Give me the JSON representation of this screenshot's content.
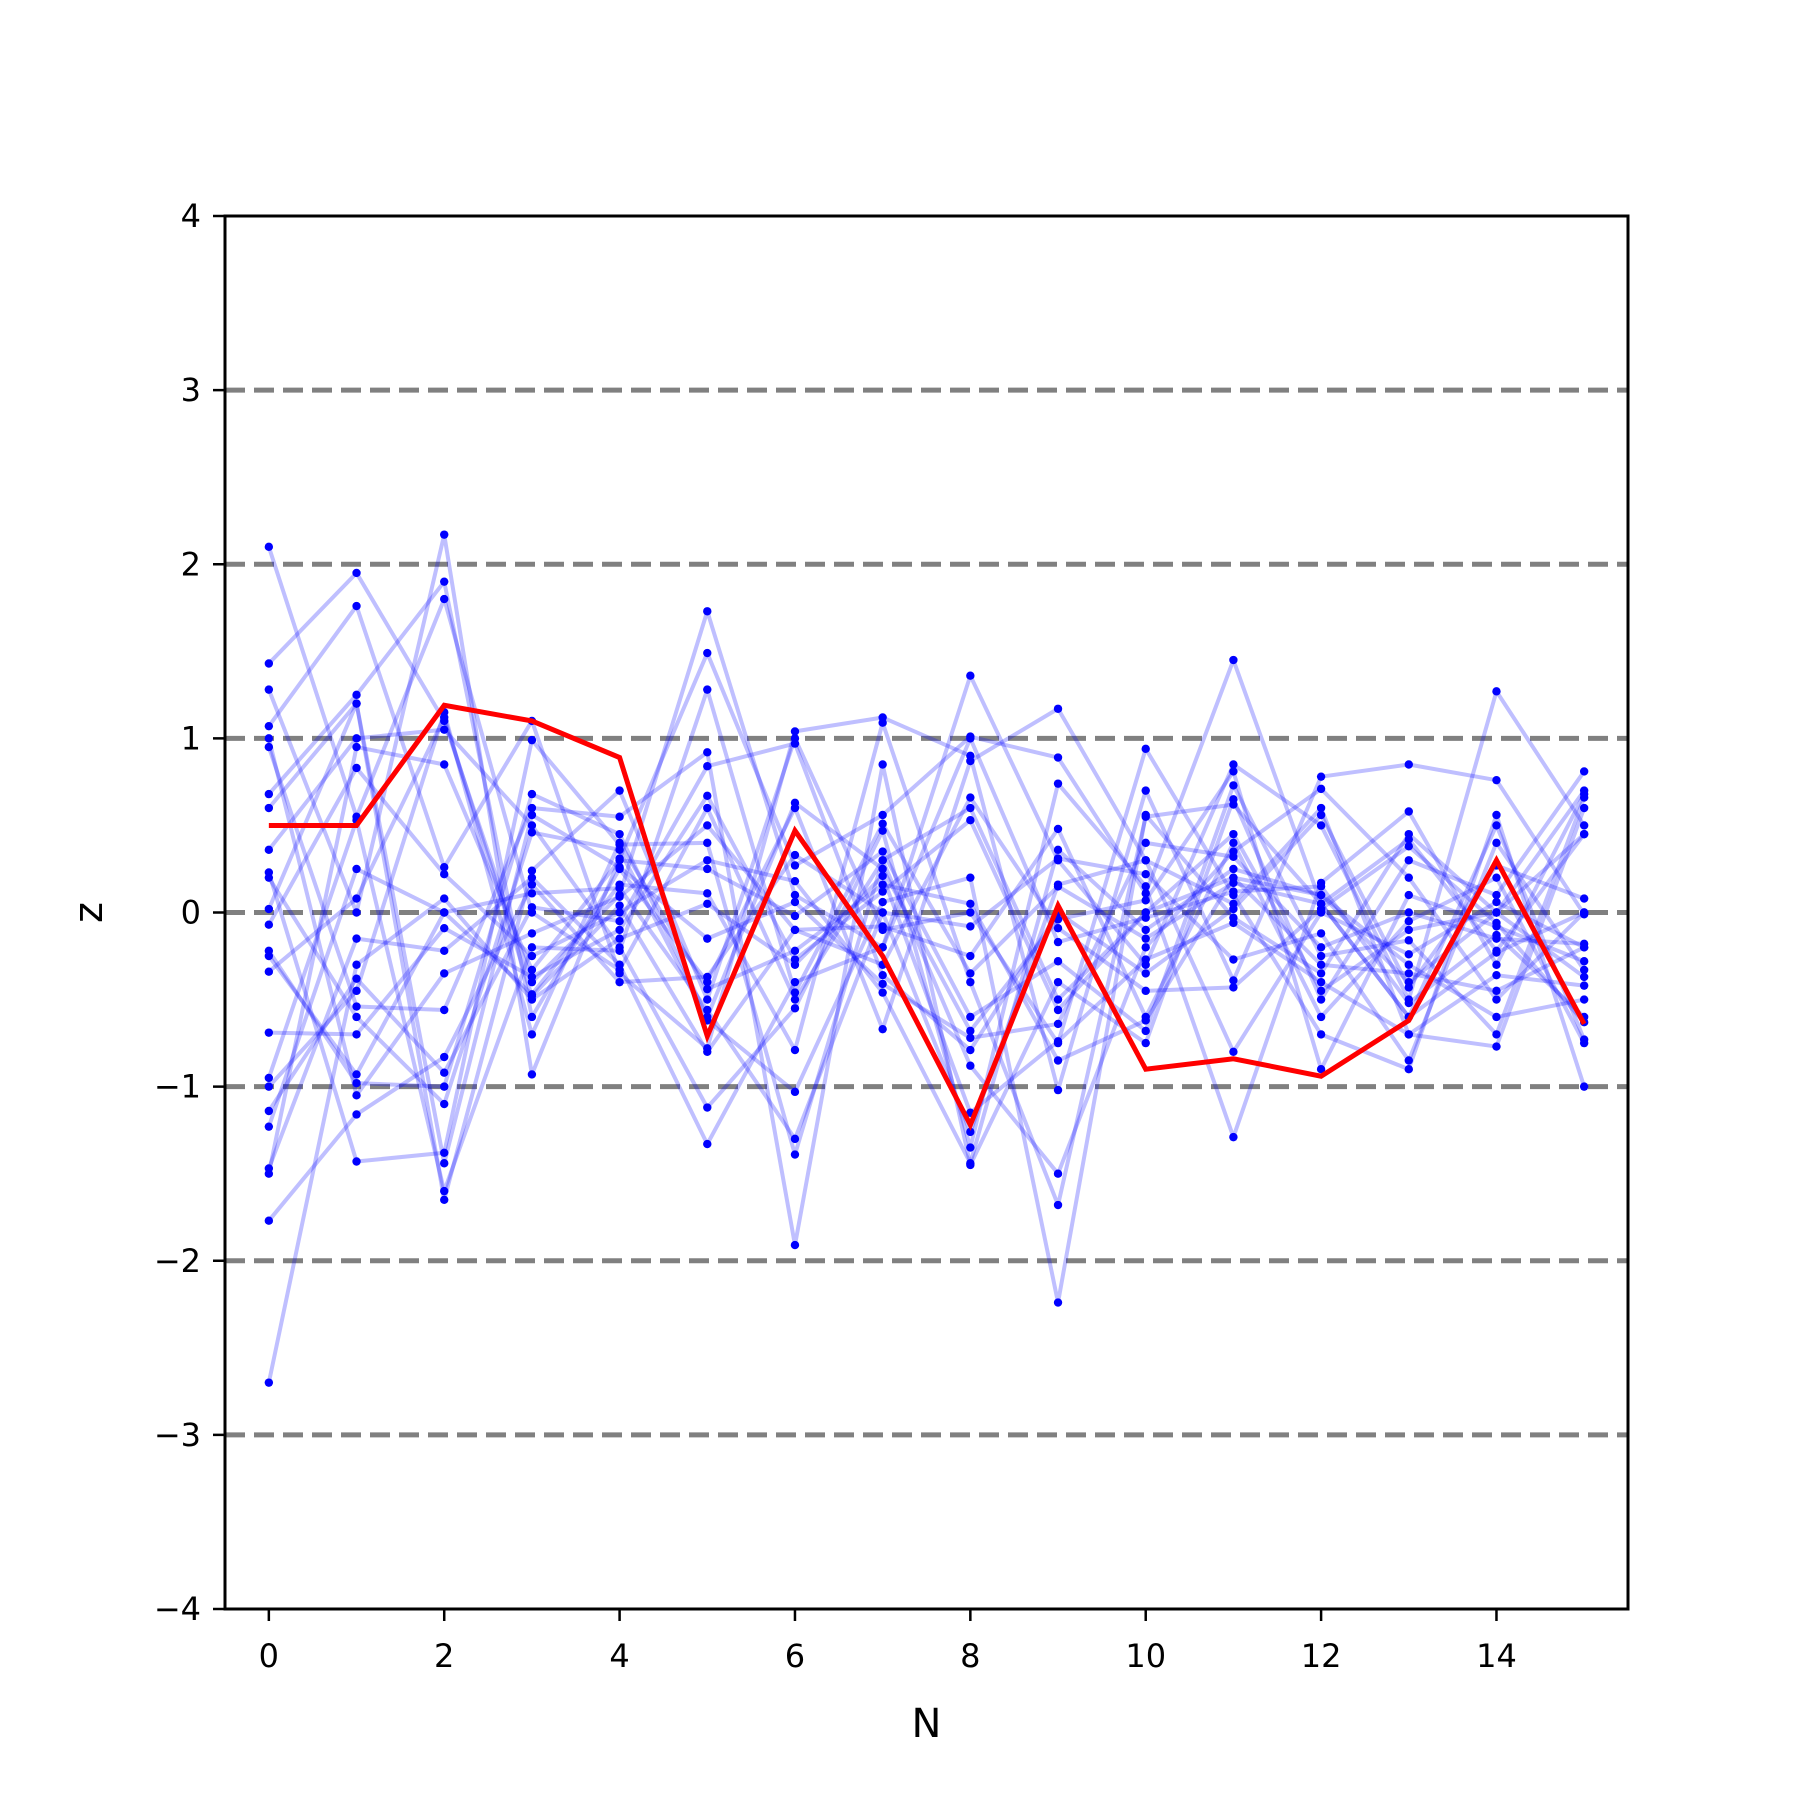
{
  "chart_data": {
    "type": "line",
    "title": "",
    "xlabel": "N",
    "ylabel": "z",
    "xlim": [
      -0.5,
      15.5
    ],
    "ylim": [
      -4,
      4
    ],
    "x": [
      0,
      1,
      2,
      3,
      4,
      5,
      6,
      7,
      8,
      9,
      10,
      11,
      12,
      13,
      14,
      15
    ],
    "x_ticks": [
      0,
      2,
      4,
      6,
      8,
      10,
      12,
      14
    ],
    "x_tick_labels": [
      "0",
      "2",
      "4",
      "6",
      "8",
      "10",
      "12",
      "14"
    ],
    "y_ticks": [
      -4,
      -3,
      -2,
      -1,
      0,
      1,
      2,
      3,
      4
    ],
    "y_tick_labels": [
      "−4",
      "−3",
      "−2",
      "−1",
      "0",
      "1",
      "2",
      "3",
      "4"
    ],
    "reference_lines": [
      -3,
      -2,
      -1,
      0,
      1,
      2,
      3
    ],
    "reference_line_color": "#808080",
    "highlight_series": {
      "color": "#ff0000",
      "values": [
        0.5,
        0.5,
        1.19,
        1.1,
        0.89,
        -0.71,
        0.47,
        -0.25,
        -1.22,
        0.04,
        -0.9,
        -0.84,
        -0.94,
        -0.62,
        0.3,
        -0.64
      ]
    },
    "background_series_color": "#0000ff",
    "background_series": [
      [
        2.1,
        0.55,
        1.8,
        0.0,
        -0.33,
        0.6,
        -0.5,
        0.3,
        0.6,
        -0.5,
        0.0,
        0.2,
        0.1,
        -0.4,
        0.0,
        0.45
      ],
      [
        1.43,
        1.95,
        1.1,
        -0.4,
        0.1,
        1.73,
        0.1,
        -0.2,
        1.36,
        0.3,
        -0.3,
        0.85,
        0.5,
        -0.5,
        1.27,
        0.5
      ],
      [
        1.28,
        0.0,
        2.17,
        -0.93,
        0.31,
        1.49,
        0.27,
        0.56,
        1.01,
        0.89,
        0.11,
        1.45,
        0.05,
        -0.6,
        0.5,
        -0.73
      ],
      [
        1.07,
        1.76,
        0.26,
        1.1,
        -0.35,
        -0.78,
        1.04,
        1.12,
        0.9,
        -1.02,
        0.7,
        -0.39,
        0.78,
        0.85,
        0.76,
        -0.01
      ],
      [
        0.95,
        -0.54,
        -0.56,
        0.6,
        0.55,
        0.92,
        -1.91,
        0.85,
        -1.45,
        -0.4,
        -0.75,
        0.65,
        -0.5,
        0.3,
        0.1,
        0.81
      ],
      [
        0.68,
        1.25,
        1.9,
        -0.6,
        0.25,
        -0.4,
        0.6,
        -0.67,
        0.87,
        1.17,
        0.3,
        0.05,
        0.6,
        -0.7,
        -0.77,
        0.6
      ],
      [
        0.6,
        1.2,
        -1.65,
        0.24,
        0.7,
        -0.5,
        1.0,
        -0.1,
        0.0,
        -0.75,
        0.94,
        0.1,
        -0.7,
        -0.9,
        0.56,
        -1.0
      ],
      [
        0.36,
        1.0,
        1.05,
        0.5,
        -0.2,
        -1.12,
        -0.55,
        0.47,
        -1.35,
        0.74,
        0.15,
        -1.29,
        0.17,
        0.58,
        -0.3,
        0.68
      ],
      [
        0.23,
        -1.43,
        -1.38,
        0.99,
        0.39,
        0.4,
        -1.39,
        0.3,
        -0.88,
        -1.5,
        -0.2,
        0.35,
        0.71,
        0.2,
        -0.5,
        0.0
      ],
      [
        0.2,
        -0.6,
        -1.1,
        0.46,
        0.36,
        -0.62,
        -1.03,
        0.06,
        0.2,
        -2.24,
        0.56,
        -0.03,
        -0.35,
        0.45,
        0.0,
        -0.37
      ],
      [
        -0.07,
        0.83,
        0.22,
        -0.25,
        0.0,
        0.3,
        0.18,
        -0.46,
        -1.44,
        0.36,
        -0.1,
        0.25,
        0.1,
        -0.3,
        -0.6,
        -0.5
      ],
      [
        -0.22,
        -0.98,
        -1.0,
        0.68,
        0.45,
        -0.6,
        0.63,
        0.25,
        -0.68,
        -0.04,
        0.07,
        0.81,
        -0.9,
        0.1,
        -0.08,
        -0.28
      ],
      [
        -0.25,
        -0.93,
        0.0,
        -0.47,
        0.16,
        0.11,
        -0.79,
        1.09,
        -0.4,
        -1.68,
        0.55,
        0.62,
        0.05,
        0.42,
        -0.22,
        0.45
      ],
      [
        -0.34,
        0.08,
        1.12,
        -0.48,
        0.04,
        -0.8,
        -0.1,
        -0.08,
        -0.25,
        0.48,
        -0.6,
        0.4,
        -0.6,
        -0.05,
        0.2,
        -0.75
      ],
      [
        -0.69,
        -0.7,
        -0.09,
        -0.37,
        -0.1,
        0.67,
        -0.27,
        0.12,
        0.53,
        -0.56,
        0.0,
        0.45,
        -0.45,
        -0.1,
        0.0,
        0.7
      ],
      [
        -0.95,
        0.53,
        -1.6,
        -0.2,
        -0.22,
        1.28,
        -0.46,
        0.51,
        -0.35,
        0.15,
        -0.15,
        0.17,
        0.05,
        -0.6,
        -0.23,
        0.0
      ],
      [
        -1.0,
        -0.45,
        1.15,
        -0.7,
        0.4,
        -0.44,
        -0.22,
        0.16,
        0.05,
        -0.85,
        -0.62,
        0.2,
        -0.3,
        -0.35,
        -0.45,
        -0.2
      ],
      [
        -1.14,
        -0.38,
        -0.92,
        0.03,
        -0.05,
        0.84,
        0.97,
        -0.36,
        -0.79,
        0.0,
        -0.35,
        0.02,
        0.56,
        -0.43,
        0.27,
        0.08
      ],
      [
        -1.23,
        0.25,
        0.0,
        0.11,
        0.14,
        -0.56,
        -1.3,
        0.0,
        -0.08,
        0.31,
        0.22,
        -0.27,
        -0.12,
        -0.85,
        0.4,
        -0.33
      ],
      [
        -1.47,
        -0.15,
        -0.22,
        0.2,
        -0.3,
        -1.33,
        -0.4,
        -0.2,
        1.0,
        -0.17,
        -0.03,
        0.12,
        0.15,
        -0.52,
        -0.13,
        -0.6
      ],
      [
        -1.5,
        0.95,
        0.85,
        -0.33,
        0.3,
        0.25,
        -0.02,
        0.35,
        -0.6,
        -0.28,
        -0.68,
        0.73,
        -0.25,
        -0.16,
        -0.7,
        0.66
      ],
      [
        -1.77,
        -1.16,
        -0.83,
        0.16,
        -0.4,
        -0.37,
        0.33,
        0.0,
        -1.26,
        0.16,
        0.3,
        -0.8,
        0.0,
        -0.24,
        0.06,
        -0.2
      ],
      [
        -2.7,
        -0.3,
        0.08,
        -0.5,
        -0.15,
        0.05,
        -0.3,
        0.21,
        -1.15,
        -0.74,
        -0.27,
        -0.06,
        -0.4,
        -0.7,
        -0.36,
        -0.42
      ],
      [
        0.02,
        1.2,
        -1.44,
        0.56,
        0.26,
        -0.15,
        0.06,
        -0.41,
        -0.72,
        -0.64,
        0.4,
        0.32,
        -0.2,
        0.0,
        -0.15,
        -0.18
      ],
      [
        1.0,
        -1.05,
        -0.35,
        -0.12,
        0.09,
        0.5,
        -0.1,
        -0.3,
        0.66,
        -0.09,
        -0.45,
        -0.43,
        0.02,
        0.38,
        -0.06,
        -0.63
      ]
    ]
  }
}
